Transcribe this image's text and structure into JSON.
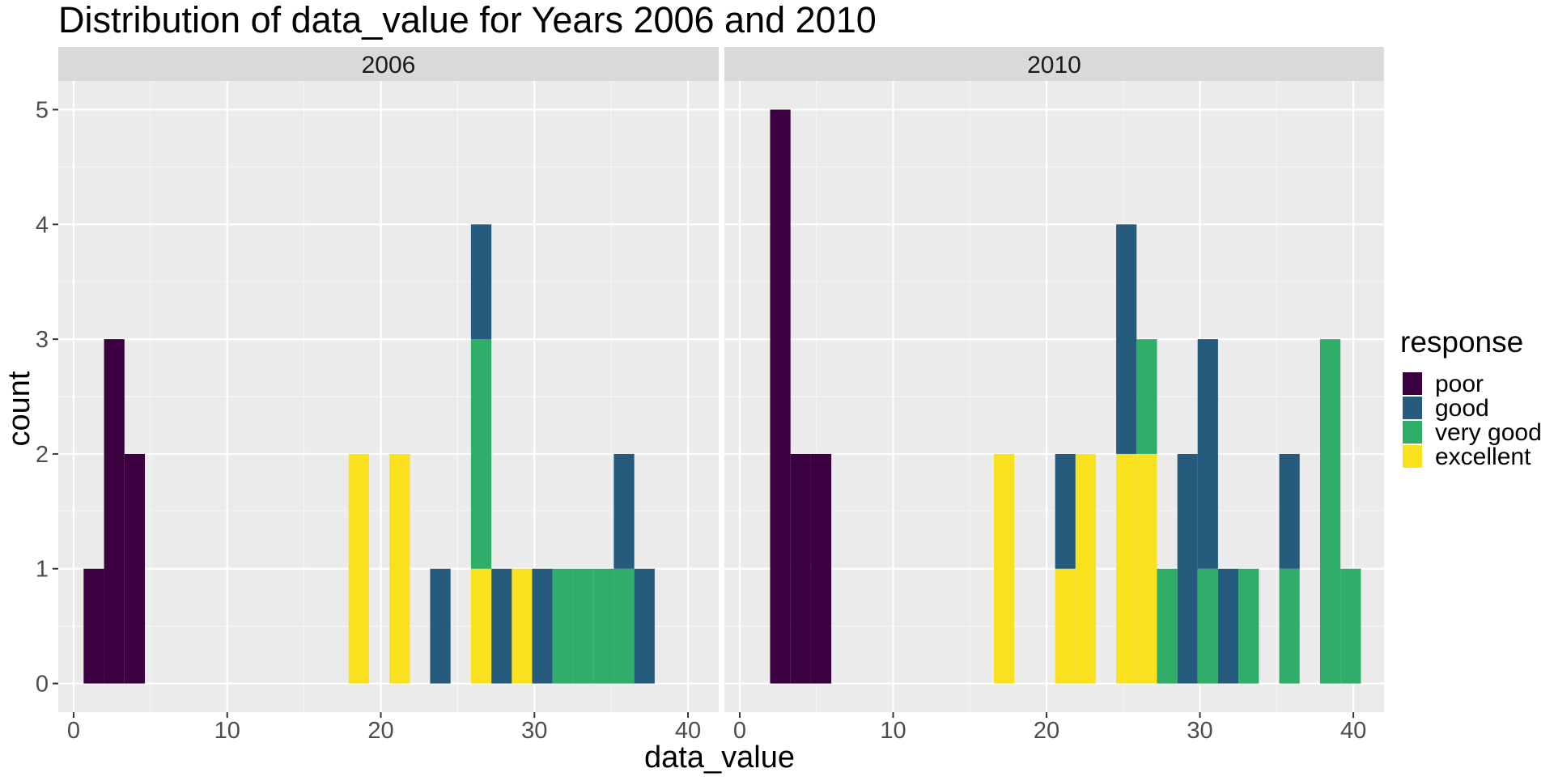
{
  "chart_data": {
    "type": "bar",
    "subtype": "stacked-histogram-faceted",
    "title": "Distribution of data_value for Years 2006 and 2010",
    "xlabel": "data_value",
    "ylabel": "count",
    "xlim": [
      -1,
      42
    ],
    "ylim": [
      -0.25,
      5.25
    ],
    "x_ticks": [
      0,
      10,
      20,
      30,
      40
    ],
    "y_ticks": [
      0,
      1,
      2,
      3,
      4,
      5
    ],
    "grid": true,
    "legend": {
      "title": "response",
      "position": "right",
      "entries": [
        {
          "name": "poor",
          "color": "#3A0040"
        },
        {
          "name": "good",
          "color": "#265B7E"
        },
        {
          "name": "very good",
          "color": "#2FAE6A"
        },
        {
          "name": "excellent",
          "color": "#F9E11E"
        }
      ]
    },
    "facets": [
      {
        "label": "2006",
        "bins": [
          {
            "x0": 0.65,
            "x1": 1.98,
            "poor": 1,
            "good": 0,
            "very good": 0,
            "excellent": 0
          },
          {
            "x0": 1.98,
            "x1": 3.31,
            "poor": 3,
            "good": 0,
            "very good": 0,
            "excellent": 0
          },
          {
            "x0": 3.31,
            "x1": 4.64,
            "poor": 2,
            "good": 0,
            "very good": 0,
            "excellent": 0
          },
          {
            "x0": 17.9,
            "x1": 19.23,
            "poor": 0,
            "good": 0,
            "very good": 0,
            "excellent": 2
          },
          {
            "x0": 20.56,
            "x1": 21.89,
            "poor": 0,
            "good": 0,
            "very good": 0,
            "excellent": 2
          },
          {
            "x0": 23.21,
            "x1": 24.54,
            "poor": 0,
            "good": 1,
            "very good": 0,
            "excellent": 0
          },
          {
            "x0": 25.87,
            "x1": 27.2,
            "poor": 0,
            "good": 1,
            "very good": 2,
            "excellent": 1
          },
          {
            "x0": 27.2,
            "x1": 28.53,
            "poor": 0,
            "good": 1,
            "very good": 0,
            "excellent": 0
          },
          {
            "x0": 28.53,
            "x1": 29.85,
            "poor": 0,
            "good": 0,
            "very good": 0,
            "excellent": 1
          },
          {
            "x0": 29.85,
            "x1": 31.18,
            "poor": 0,
            "good": 1,
            "very good": 0,
            "excellent": 0
          },
          {
            "x0": 31.18,
            "x1": 32.51,
            "poor": 0,
            "good": 0,
            "very good": 1,
            "excellent": 0
          },
          {
            "x0": 32.51,
            "x1": 33.84,
            "poor": 0,
            "good": 0,
            "very good": 1,
            "excellent": 0
          },
          {
            "x0": 33.84,
            "x1": 35.17,
            "poor": 0,
            "good": 0,
            "very good": 1,
            "excellent": 0
          },
          {
            "x0": 35.17,
            "x1": 36.5,
            "poor": 0,
            "good": 1,
            "very good": 1,
            "excellent": 0
          },
          {
            "x0": 36.5,
            "x1": 37.83,
            "poor": 0,
            "good": 1,
            "very good": 0,
            "excellent": 0
          }
        ]
      },
      {
        "label": "2010",
        "bins": [
          {
            "x0": 1.98,
            "x1": 3.31,
            "poor": 5,
            "good": 0,
            "very good": 0,
            "excellent": 0
          },
          {
            "x0": 3.31,
            "x1": 4.64,
            "poor": 2,
            "good": 0,
            "very good": 0,
            "excellent": 0
          },
          {
            "x0": 4.64,
            "x1": 5.97,
            "poor": 2,
            "good": 0,
            "very good": 0,
            "excellent": 0
          },
          {
            "x0": 16.57,
            "x1": 17.9,
            "poor": 0,
            "good": 0,
            "very good": 0,
            "excellent": 2
          },
          {
            "x0": 20.56,
            "x1": 21.89,
            "poor": 0,
            "good": 1,
            "very good": 0,
            "excellent": 1
          },
          {
            "x0": 21.89,
            "x1": 23.21,
            "poor": 0,
            "good": 0,
            "very good": 0,
            "excellent": 2
          },
          {
            "x0": 24.54,
            "x1": 25.87,
            "poor": 0,
            "good": 2,
            "very good": 0,
            "excellent": 2
          },
          {
            "x0": 25.87,
            "x1": 27.2,
            "poor": 0,
            "good": 0,
            "very good": 1,
            "excellent": 2
          },
          {
            "x0": 27.2,
            "x1": 28.53,
            "poor": 0,
            "good": 0,
            "very good": 1,
            "excellent": 0
          },
          {
            "x0": 28.53,
            "x1": 29.85,
            "poor": 0,
            "good": 2,
            "very good": 0,
            "excellent": 0
          },
          {
            "x0": 29.85,
            "x1": 31.18,
            "poor": 0,
            "good": 2,
            "very good": 1,
            "excellent": 0
          },
          {
            "x0": 31.18,
            "x1": 32.51,
            "poor": 0,
            "good": 1,
            "very good": 0,
            "excellent": 0
          },
          {
            "x0": 32.51,
            "x1": 33.84,
            "poor": 0,
            "good": 0,
            "very good": 1,
            "excellent": 0
          },
          {
            "x0": 35.17,
            "x1": 36.5,
            "poor": 0,
            "good": 1,
            "very good": 1,
            "excellent": 0
          },
          {
            "x0": 37.83,
            "x1": 39.16,
            "poor": 0,
            "good": 0,
            "very good": 3,
            "excellent": 0
          },
          {
            "x0": 39.16,
            "x1": 40.49,
            "poor": 0,
            "good": 0,
            "very good": 1,
            "excellent": 0
          }
        ]
      }
    ]
  }
}
